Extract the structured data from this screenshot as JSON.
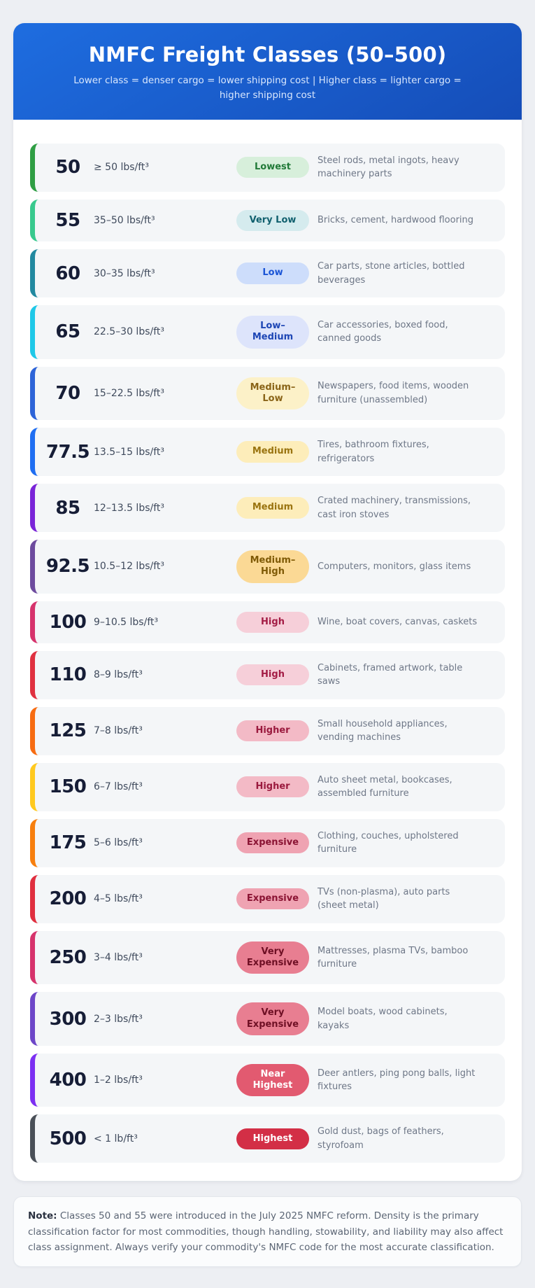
{
  "header": {
    "title": "NMFC Freight Classes (50–500)",
    "subtitle": "Lower class = denser cargo = lower shipping cost | Higher class = lighter cargo = higher shipping cost"
  },
  "colors": {
    "header_gradient_from": "#1e6de0",
    "header_gradient_to": "#154db8",
    "page_background": "#edeff3",
    "row_background": "#f4f6f8"
  },
  "badge_styles": {
    "lowest": {
      "bg": "#d7efdb",
      "text": "#217a38"
    },
    "very-low": {
      "bg": "#d5ebee",
      "text": "#11606e"
    },
    "low": {
      "bg": "#cdddfb",
      "text": "#1b55d6"
    },
    "low-medium": {
      "bg": "#dde4fb",
      "text": "#1d46b5"
    },
    "medium-low": {
      "bg": "#fcf1c8",
      "text": "#8a6418"
    },
    "medium": {
      "bg": "#fdedba",
      "text": "#9a7410"
    },
    "medium-high": {
      "bg": "#fbd995",
      "text": "#7f5a06"
    },
    "high": {
      "bg": "#f6cfd9",
      "text": "#a31c45"
    },
    "higher": {
      "bg": "#f3bac6",
      "text": "#9a1a3e"
    },
    "expensive": {
      "bg": "#efa3b2",
      "text": "#8a1333"
    },
    "very-expensive": {
      "bg": "#e87e91",
      "text": "#6e0f24"
    },
    "near-highest": {
      "bg": "#e25a70",
      "text": "#ffffff"
    },
    "highest": {
      "bg": "#d32f46",
      "text": "#ffffff"
    }
  },
  "rows": [
    {
      "class": "50",
      "density": "≥ 50 lbs/ft³",
      "cost_label": "Lowest",
      "cost_key": "lowest",
      "examples": "Steel rods, metal ingots, heavy machinery parts",
      "border_color": "#2f9e44"
    },
    {
      "class": "55",
      "density": "35–50 lbs/ft³",
      "cost_label": "Very Low",
      "cost_key": "very-low",
      "examples": "Bricks, cement, hardwood flooring",
      "border_color": "#38c98e"
    },
    {
      "class": "60",
      "density": "30–35 lbs/ft³",
      "cost_label": "Low",
      "cost_key": "low",
      "examples": "Car parts, stone articles, bottled beverages",
      "border_color": "#2289a0"
    },
    {
      "class": "65",
      "density": "22.5–30 lbs/ft³",
      "cost_label": "Low–Medium",
      "cost_key": "low-medium",
      "examples": "Car accessories, boxed food, canned goods",
      "border_color": "#1fc8e8"
    },
    {
      "class": "70",
      "density": "15–22.5 lbs/ft³",
      "cost_label": "Medium–Low",
      "cost_key": "medium-low",
      "examples": "Newspapers, food items, wooden furniture (unassembled)",
      "border_color": "#2d64d8"
    },
    {
      "class": "77.5",
      "density": "13.5–15 lbs/ft³",
      "cost_label": "Medium",
      "cost_key": "medium",
      "examples": "Tires, bathroom fixtures, refrigerators",
      "border_color": "#1f6ef2"
    },
    {
      "class": "85",
      "density": "12–13.5 lbs/ft³",
      "cost_label": "Medium",
      "cost_key": "medium",
      "examples": "Crated machinery, transmissions, cast iron stoves",
      "border_color": "#7a24d8"
    },
    {
      "class": "92.5",
      "density": "10.5–12 lbs/ft³",
      "cost_label": "Medium–High",
      "cost_key": "medium-high",
      "examples": "Computers, monitors, glass items",
      "border_color": "#6d4b9e"
    },
    {
      "class": "100",
      "density": "9–10.5 lbs/ft³",
      "cost_label": "High",
      "cost_key": "high",
      "examples": "Wine, boat covers, canvas, caskets",
      "border_color": "#d6336c"
    },
    {
      "class": "110",
      "density": "8–9 lbs/ft³",
      "cost_label": "High",
      "cost_key": "high",
      "examples": "Cabinets, framed artwork, table saws",
      "border_color": "#e03140"
    },
    {
      "class": "125",
      "density": "7–8 lbs/ft³",
      "cost_label": "Higher",
      "cost_key": "higher",
      "examples": "Small household appliances, vending machines",
      "border_color": "#f76c12"
    },
    {
      "class": "150",
      "density": "6–7 lbs/ft³",
      "cost_label": "Higher",
      "cost_key": "higher",
      "examples": "Auto sheet metal, bookcases, assembled furniture",
      "border_color": "#ffc91f"
    },
    {
      "class": "175",
      "density": "5–6 lbs/ft³",
      "cost_label": "Expensive",
      "cost_key": "expensive",
      "examples": "Clothing, couches, upholstered furniture",
      "border_color": "#f77f0e"
    },
    {
      "class": "200",
      "density": "4–5 lbs/ft³",
      "cost_label": "Expensive",
      "cost_key": "expensive",
      "examples": "TVs (non-plasma), auto parts (sheet metal)",
      "border_color": "#e02f3f"
    },
    {
      "class": "250",
      "density": "3–4 lbs/ft³",
      "cost_label": "Very Expensive",
      "cost_key": "very-expensive",
      "examples": "Mattresses, plasma TVs, bamboo furniture",
      "border_color": "#d6336c"
    },
    {
      "class": "300",
      "density": "2–3 lbs/ft³",
      "cost_label": "Very Expensive",
      "cost_key": "very-expensive",
      "examples": "Model boats, wood cabinets, kayaks",
      "border_color": "#6d46c8"
    },
    {
      "class": "400",
      "density": "1–2 lbs/ft³",
      "cost_label": "Near Highest",
      "cost_key": "near-highest",
      "examples": "Deer antlers, ping pong balls, light fixtures",
      "border_color": "#7c2ff2"
    },
    {
      "class": "500",
      "density": "< 1 lb/ft³",
      "cost_label": "Highest",
      "cost_key": "highest",
      "examples": "Gold dust, bags of feathers, styrofoam",
      "border_color": "#4a5058"
    }
  ],
  "note": {
    "label": "Note:",
    "body": " Classes 50 and 55 were introduced in the July 2025 NMFC reform. Density is the primary classification factor for most commodities, though handling, stowability, and liability may also affect class assignment. Always verify your commodity's NMFC code for the most accurate classification."
  }
}
